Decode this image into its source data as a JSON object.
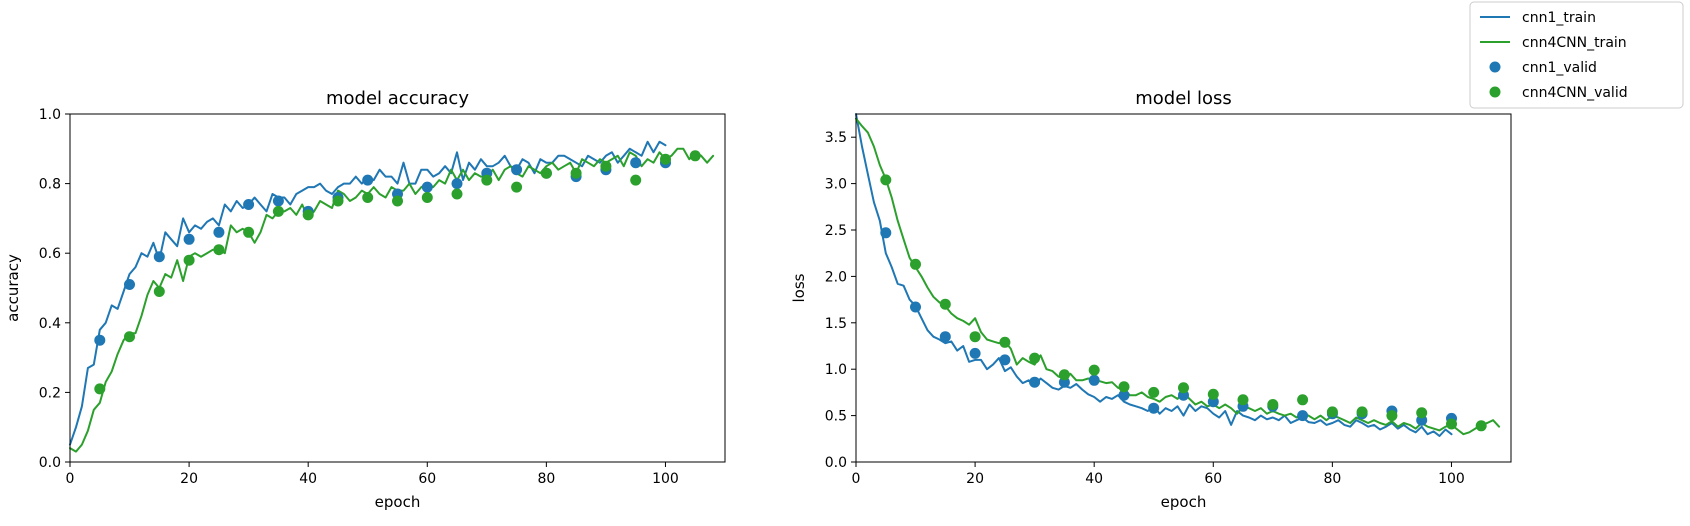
{
  "legend": {
    "entries": [
      {
        "label": "cnn1_train",
        "color": "#1f77b4",
        "kind": "line"
      },
      {
        "label": "cnn4CNN_train",
        "color": "#2ca02c",
        "kind": "line"
      },
      {
        "label": "cnn1_valid",
        "color": "#1f77b4",
        "kind": "marker"
      },
      {
        "label": "cnn4CNN_valid",
        "color": "#2ca02c",
        "kind": "marker"
      }
    ],
    "placement": "top-right"
  },
  "colors": {
    "cnn1": "#1f77b4",
    "cnn4CNN": "#2ca02c"
  },
  "chart_data": [
    {
      "type": "line",
      "title": "model accuracy",
      "xlabel": "epoch",
      "ylabel": "accuracy",
      "xlim": [
        0,
        110
      ],
      "ylim": [
        0,
        1.0
      ],
      "xticks": [
        "0",
        "20",
        "40",
        "60",
        "80",
        "100"
      ],
      "yticks": [
        "0.0",
        "0.2",
        "0.4",
        "0.6",
        "0.8",
        "1.0"
      ],
      "grid": false,
      "series": [
        {
          "name": "cnn1_train",
          "style": "line",
          "color": "#1f77b4",
          "x": [
            0,
            1,
            2,
            3,
            4,
            5,
            6,
            7,
            8,
            9,
            10,
            11,
            12,
            13,
            14,
            15,
            16,
            17,
            18,
            19,
            20,
            21,
            22,
            23,
            24,
            25,
            26,
            27,
            28,
            29,
            30,
            31,
            32,
            33,
            34,
            35,
            36,
            37,
            38,
            39,
            40,
            41,
            42,
            43,
            44,
            45,
            46,
            47,
            48,
            49,
            50,
            51,
            52,
            53,
            54,
            55,
            56,
            57,
            58,
            59,
            60,
            61,
            62,
            63,
            64,
            65,
            66,
            67,
            68,
            69,
            70,
            71,
            72,
            73,
            74,
            75,
            76,
            77,
            78,
            79,
            80,
            81,
            82,
            83,
            84,
            85,
            86,
            87,
            88,
            89,
            90,
            91,
            92,
            93,
            94,
            95,
            96,
            97,
            98,
            99,
            100
          ],
          "y": [
            0.05,
            0.1,
            0.16,
            0.27,
            0.28,
            0.38,
            0.4,
            0.45,
            0.44,
            0.49,
            0.54,
            0.56,
            0.6,
            0.59,
            0.63,
            0.58,
            0.66,
            0.64,
            0.62,
            0.7,
            0.66,
            0.68,
            0.67,
            0.69,
            0.7,
            0.68,
            0.74,
            0.72,
            0.75,
            0.73,
            0.74,
            0.76,
            0.74,
            0.72,
            0.77,
            0.76,
            0.76,
            0.74,
            0.77,
            0.78,
            0.79,
            0.79,
            0.8,
            0.78,
            0.77,
            0.79,
            0.8,
            0.8,
            0.82,
            0.8,
            0.82,
            0.81,
            0.84,
            0.82,
            0.82,
            0.8,
            0.86,
            0.8,
            0.8,
            0.84,
            0.84,
            0.82,
            0.83,
            0.85,
            0.83,
            0.89,
            0.81,
            0.86,
            0.84,
            0.87,
            0.85,
            0.85,
            0.86,
            0.88,
            0.85,
            0.84,
            0.87,
            0.86,
            0.83,
            0.87,
            0.86,
            0.86,
            0.88,
            0.88,
            0.87,
            0.86,
            0.85,
            0.88,
            0.87,
            0.86,
            0.88,
            0.89,
            0.86,
            0.88,
            0.9,
            0.89,
            0.88,
            0.92,
            0.89,
            0.92,
            0.91
          ]
        },
        {
          "name": "cnn4CNN_train",
          "style": "line",
          "color": "#2ca02c",
          "x": [
            0,
            1,
            2,
            3,
            4,
            5,
            6,
            7,
            8,
            9,
            10,
            11,
            12,
            13,
            14,
            15,
            16,
            17,
            18,
            19,
            20,
            21,
            22,
            23,
            24,
            25,
            26,
            27,
            28,
            29,
            30,
            31,
            32,
            33,
            34,
            35,
            36,
            37,
            38,
            39,
            40,
            41,
            42,
            43,
            44,
            45,
            46,
            47,
            48,
            49,
            50,
            51,
            52,
            53,
            54,
            55,
            56,
            57,
            58,
            59,
            60,
            61,
            62,
            63,
            64,
            65,
            66,
            67,
            68,
            69,
            70,
            71,
            72,
            73,
            74,
            75,
            76,
            77,
            78,
            79,
            80,
            81,
            82,
            83,
            84,
            85,
            86,
            87,
            88,
            89,
            90,
            91,
            92,
            93,
            94,
            95,
            96,
            97,
            98,
            99,
            100,
            101,
            102,
            103,
            104,
            105,
            106,
            107,
            108
          ],
          "y": [
            0.04,
            0.03,
            0.05,
            0.09,
            0.15,
            0.17,
            0.23,
            0.26,
            0.31,
            0.35,
            0.37,
            0.37,
            0.42,
            0.48,
            0.52,
            0.5,
            0.54,
            0.53,
            0.58,
            0.52,
            0.59,
            0.6,
            0.59,
            0.6,
            0.61,
            0.61,
            0.6,
            0.68,
            0.66,
            0.67,
            0.66,
            0.63,
            0.66,
            0.71,
            0.7,
            0.72,
            0.72,
            0.73,
            0.71,
            0.74,
            0.7,
            0.72,
            0.75,
            0.74,
            0.73,
            0.78,
            0.77,
            0.75,
            0.76,
            0.78,
            0.77,
            0.79,
            0.77,
            0.76,
            0.79,
            0.78,
            0.78,
            0.8,
            0.77,
            0.79,
            0.8,
            0.79,
            0.81,
            0.8,
            0.84,
            0.81,
            0.84,
            0.81,
            0.83,
            0.82,
            0.82,
            0.84,
            0.81,
            0.84,
            0.85,
            0.83,
            0.82,
            0.85,
            0.84,
            0.83,
            0.85,
            0.86,
            0.84,
            0.85,
            0.86,
            0.83,
            0.87,
            0.86,
            0.85,
            0.87,
            0.86,
            0.87,
            0.88,
            0.85,
            0.89,
            0.88,
            0.85,
            0.87,
            0.86,
            0.89,
            0.87,
            0.88,
            0.9,
            0.9,
            0.87,
            0.89,
            0.88,
            0.86,
            0.88
          ]
        },
        {
          "name": "cnn1_valid",
          "style": "marker",
          "color": "#1f77b4",
          "x": [
            5,
            10,
            15,
            20,
            25,
            30,
            35,
            40,
            45,
            50,
            55,
            60,
            65,
            70,
            75,
            80,
            85,
            90,
            95,
            100
          ],
          "y": [
            0.35,
            0.51,
            0.59,
            0.64,
            0.66,
            0.74,
            0.75,
            0.72,
            0.76,
            0.81,
            0.77,
            0.79,
            0.8,
            0.83,
            0.84,
            0.83,
            0.82,
            0.84,
            0.86,
            0.86
          ]
        },
        {
          "name": "cnn4CNN_valid",
          "style": "marker",
          "color": "#2ca02c",
          "x": [
            5,
            10,
            15,
            20,
            25,
            30,
            35,
            40,
            45,
            50,
            55,
            60,
            65,
            70,
            75,
            80,
            85,
            90,
            95,
            100,
            105
          ],
          "y": [
            0.21,
            0.36,
            0.49,
            0.58,
            0.61,
            0.66,
            0.72,
            0.71,
            0.75,
            0.76,
            0.75,
            0.76,
            0.77,
            0.81,
            0.79,
            0.83,
            0.83,
            0.85,
            0.81,
            0.87,
            0.88
          ]
        }
      ]
    },
    {
      "type": "line",
      "title": "model loss",
      "xlabel": "epoch",
      "ylabel": "loss",
      "xlim": [
        0,
        110
      ],
      "ylim": [
        0,
        3.75
      ],
      "xticks": [
        "0",
        "20",
        "40",
        "60",
        "80",
        "100"
      ],
      "yticks": [
        "0.0",
        "0.5",
        "1.0",
        "1.5",
        "2.0",
        "2.5",
        "3.0",
        "3.5"
      ],
      "grid": false,
      "series": [
        {
          "name": "cnn1_train",
          "style": "line",
          "color": "#1f77b4",
          "x": [
            0,
            1,
            2,
            3,
            4,
            5,
            6,
            7,
            8,
            9,
            10,
            11,
            12,
            13,
            14,
            15,
            16,
            17,
            18,
            19,
            20,
            21,
            22,
            23,
            24,
            25,
            26,
            27,
            28,
            29,
            30,
            31,
            32,
            33,
            34,
            35,
            36,
            37,
            38,
            39,
            40,
            41,
            42,
            43,
            44,
            45,
            46,
            47,
            48,
            49,
            50,
            51,
            52,
            53,
            54,
            55,
            56,
            57,
            58,
            59,
            60,
            61,
            62,
            63,
            64,
            65,
            66,
            67,
            68,
            69,
            70,
            71,
            72,
            73,
            74,
            75,
            76,
            77,
            78,
            79,
            80,
            81,
            82,
            83,
            84,
            85,
            86,
            87,
            88,
            89,
            90,
            91,
            92,
            93,
            94,
            95,
            96,
            97,
            98,
            99,
            100
          ],
          "y": [
            3.75,
            3.4,
            3.1,
            2.8,
            2.6,
            2.25,
            2.1,
            1.92,
            1.9,
            1.75,
            1.68,
            1.55,
            1.42,
            1.35,
            1.32,
            1.28,
            1.3,
            1.2,
            1.25,
            1.08,
            1.1,
            1.1,
            1.0,
            1.05,
            1.12,
            0.98,
            1.02,
            0.92,
            0.85,
            0.88,
            0.82,
            0.9,
            0.85,
            0.8,
            0.78,
            0.82,
            0.8,
            0.84,
            0.78,
            0.73,
            0.7,
            0.65,
            0.7,
            0.68,
            0.72,
            0.65,
            0.62,
            0.6,
            0.58,
            0.55,
            0.6,
            0.52,
            0.58,
            0.55,
            0.6,
            0.5,
            0.62,
            0.55,
            0.6,
            0.58,
            0.52,
            0.48,
            0.55,
            0.4,
            0.55,
            0.5,
            0.48,
            0.45,
            0.5,
            0.46,
            0.48,
            0.45,
            0.5,
            0.42,
            0.45,
            0.48,
            0.43,
            0.42,
            0.45,
            0.4,
            0.42,
            0.45,
            0.4,
            0.38,
            0.45,
            0.42,
            0.38,
            0.4,
            0.35,
            0.38,
            0.42,
            0.36,
            0.4,
            0.35,
            0.32,
            0.38,
            0.3,
            0.33,
            0.28,
            0.35,
            0.3
          ]
        },
        {
          "name": "cnn4CNN_train",
          "style": "line",
          "color": "#2ca02c",
          "x": [
            0,
            1,
            2,
            3,
            4,
            5,
            6,
            7,
            8,
            9,
            10,
            11,
            12,
            13,
            14,
            15,
            16,
            17,
            18,
            19,
            20,
            21,
            22,
            23,
            24,
            25,
            26,
            27,
            28,
            29,
            30,
            31,
            32,
            33,
            34,
            35,
            36,
            37,
            38,
            39,
            40,
            41,
            42,
            43,
            44,
            45,
            46,
            47,
            48,
            49,
            50,
            51,
            52,
            53,
            54,
            55,
            56,
            57,
            58,
            59,
            60,
            61,
            62,
            63,
            64,
            65,
            66,
            67,
            68,
            69,
            70,
            71,
            72,
            73,
            74,
            75,
            76,
            77,
            78,
            79,
            80,
            81,
            82,
            83,
            84,
            85,
            86,
            87,
            88,
            89,
            90,
            91,
            92,
            93,
            94,
            95,
            96,
            97,
            98,
            99,
            100,
            101,
            102,
            103,
            104,
            105,
            106,
            107,
            108
          ],
          "y": [
            3.7,
            3.62,
            3.55,
            3.4,
            3.2,
            3.05,
            2.85,
            2.6,
            2.4,
            2.2,
            2.1,
            2.0,
            1.88,
            1.78,
            1.72,
            1.68,
            1.6,
            1.55,
            1.52,
            1.48,
            1.55,
            1.4,
            1.32,
            1.3,
            1.28,
            1.3,
            1.22,
            1.05,
            1.12,
            1.08,
            1.05,
            1.15,
            1.0,
            0.98,
            0.92,
            0.9,
            0.95,
            0.88,
            0.88,
            0.9,
            0.88,
            0.87,
            0.85,
            0.86,
            0.8,
            0.78,
            0.72,
            0.72,
            0.75,
            0.7,
            0.68,
            0.65,
            0.7,
            0.72,
            0.68,
            0.75,
            0.68,
            0.62,
            0.65,
            0.6,
            0.62,
            0.58,
            0.62,
            0.58,
            0.52,
            0.6,
            0.58,
            0.55,
            0.58,
            0.52,
            0.55,
            0.52,
            0.5,
            0.52,
            0.48,
            0.52,
            0.5,
            0.46,
            0.5,
            0.45,
            0.5,
            0.48,
            0.45,
            0.42,
            0.48,
            0.45,
            0.42,
            0.45,
            0.42,
            0.4,
            0.44,
            0.38,
            0.42,
            0.4,
            0.36,
            0.42,
            0.38,
            0.36,
            0.34,
            0.38,
            0.4,
            0.35,
            0.3,
            0.32,
            0.36,
            0.4,
            0.42,
            0.45,
            0.38
          ]
        },
        {
          "name": "cnn1_valid",
          "style": "marker",
          "color": "#1f77b4",
          "x": [
            5,
            10,
            15,
            20,
            25,
            30,
            35,
            40,
            45,
            50,
            55,
            60,
            65,
            70,
            75,
            80,
            85,
            90,
            95,
            100
          ],
          "y": [
            2.47,
            1.67,
            1.35,
            1.17,
            1.1,
            0.86,
            0.86,
            0.88,
            0.72,
            0.58,
            0.72,
            0.65,
            0.6,
            0.6,
            0.5,
            0.52,
            0.52,
            0.55,
            0.45,
            0.47
          ]
        },
        {
          "name": "cnn4CNN_valid",
          "style": "marker",
          "color": "#2ca02c",
          "x": [
            5,
            10,
            15,
            20,
            25,
            30,
            35,
            40,
            45,
            50,
            55,
            60,
            65,
            70,
            75,
            80,
            85,
            90,
            95,
            100,
            105
          ],
          "y": [
            3.04,
            2.13,
            1.7,
            1.35,
            1.29,
            1.12,
            0.94,
            0.99,
            0.81,
            0.75,
            0.8,
            0.73,
            0.67,
            0.62,
            0.67,
            0.54,
            0.54,
            0.5,
            0.53,
            0.41,
            0.39
          ]
        }
      ]
    }
  ]
}
